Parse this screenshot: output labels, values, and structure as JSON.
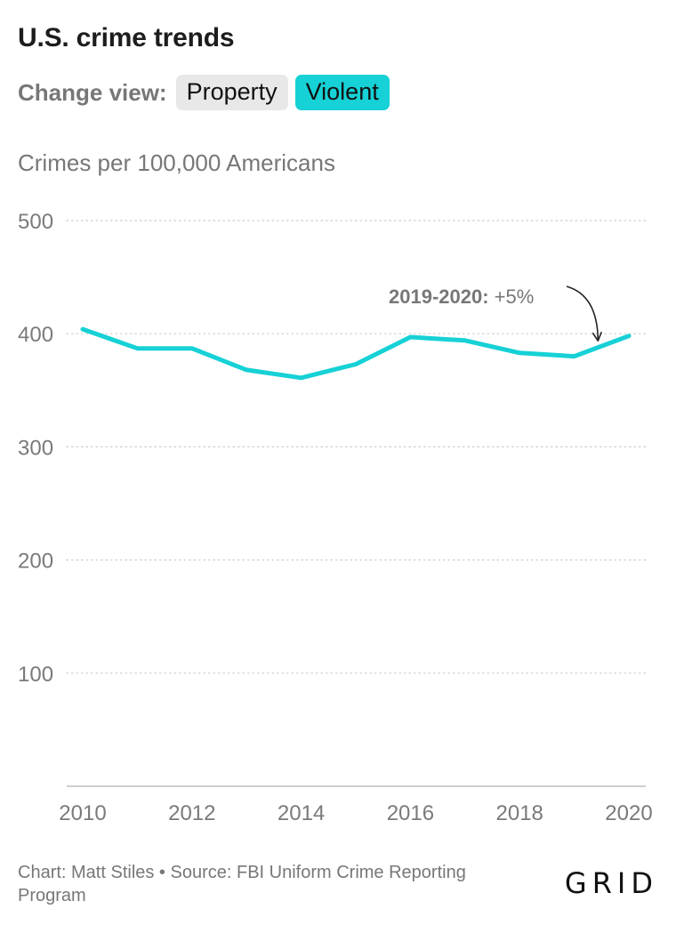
{
  "header": {
    "title": "U.S. crime trends"
  },
  "controls": {
    "label": "Change view:",
    "options": [
      {
        "label": "Property",
        "active": false
      },
      {
        "label": "Violent",
        "active": true
      }
    ]
  },
  "footer": {
    "credit": "Chart: Matt Stiles • Source: FBI Uniform Crime Reporting Program",
    "logo": "GRID"
  },
  "colors": {
    "line": "#16d1d6",
    "active_toggle": "#16d1d6",
    "inactive_toggle": "#e8e8e8",
    "grid": "#cccccc",
    "text_muted": "#777777"
  },
  "chart_data": {
    "type": "line",
    "ylabel": "Crimes per 100,000 Americans",
    "x": [
      2010,
      2011,
      2012,
      2013,
      2014,
      2015,
      2016,
      2017,
      2018,
      2019,
      2020
    ],
    "series": [
      {
        "values": [
          404,
          387,
          387,
          368,
          361,
          373,
          397,
          394,
          383,
          380,
          398
        ]
      }
    ],
    "xlim": [
      2010,
      2020
    ],
    "ylim": [
      0,
      500
    ],
    "xticks": [
      2010,
      2012,
      2014,
      2016,
      2018,
      2020
    ],
    "yticks": [
      100,
      200,
      300,
      400,
      500
    ],
    "grid": "horizontal dotted",
    "annotation": {
      "bold": "2019-2020:",
      "text": "+5%",
      "points_to_x": 2019.5
    }
  }
}
